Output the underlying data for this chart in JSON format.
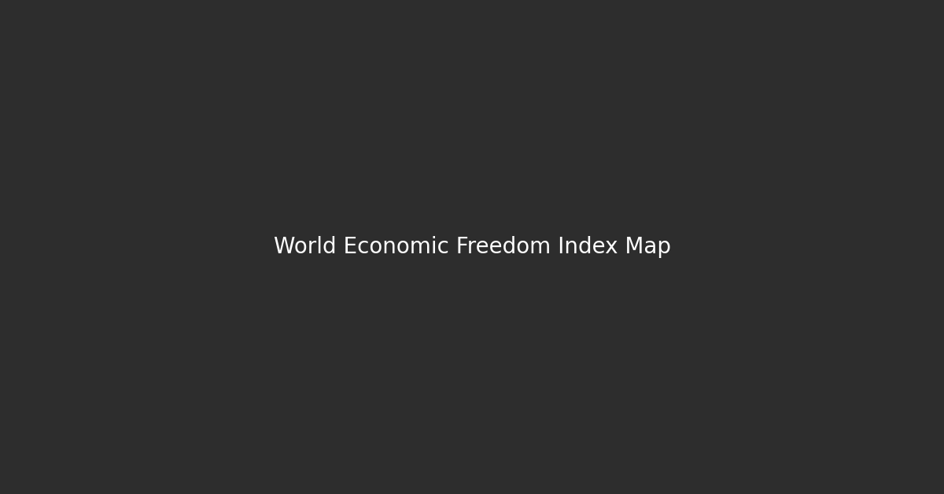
{
  "background_color": "#2d2d2d",
  "ocean_color": "#2d2d2d",
  "border_color": "#ffffff",
  "border_linewidth": 0.3,
  "colors": {
    "green": "#2ecc40",
    "yellow": "#f1c40f",
    "orange": "#e67e22",
    "red": "#e74c3c",
    "gray": "#808080",
    "dark": "#2d2d2d"
  },
  "country_colors": {
    "Australia": "green",
    "New Zealand": "green",
    "Canada": "green",
    "United States of America": "green",
    "Ireland": "green",
    "Switzerland": "green",
    "United Kingdom": "green",
    "Denmark": "green",
    "Finland": "green",
    "Sweden": "green",
    "Norway": "green",
    "Estonia": "green",
    "Netherlands": "green",
    "Luxembourg": "green",
    "Iceland": "green",
    "Taiwan": "gray",
    "Singapore": "green",
    "Hong Kong": "green",
    "Japan": "yellow",
    "South Korea": "green",
    "Chile": "green",
    "Georgia": "green",
    "Lithuania": "green",
    "Latvia": "green",
    "Czechia": "yellow",
    "Slovakia": "yellow",
    "Poland": "yellow",
    "Hungary": "yellow",
    "Romania": "yellow",
    "Bulgaria": "yellow",
    "Croatia": "yellow",
    "Slovenia": "yellow",
    "Austria": "yellow",
    "Germany": "yellow",
    "Belgium": "yellow",
    "Portugal": "yellow",
    "Spain": "yellow",
    "France": "yellow",
    "Italy": "yellow",
    "Greece": "yellow",
    "Cyprus": "yellow",
    "Malta": "yellow",
    "Israel": "yellow",
    "Uruguay": "yellow",
    "Peru": "yellow",
    "Colombia": "yellow",
    "Mexico": "yellow",
    "Kazakhstan": "yellow",
    "Mongolia": "yellow",
    "Botswana": "yellow",
    "Rwanda": "yellow",
    "Uganda": "yellow",
    "Ghana": "yellow",
    "Senegal": "yellow",
    "Morocco": "yellow",
    "Tunisia": "yellow",
    "South Africa": "yellow",
    "Mozambique": "yellow",
    "Tanzania": "yellow",
    "Philippines": "yellow",
    "Indonesia": "yellow",
    "Thailand": "yellow",
    "Malaysia": "yellow",
    "Vietnam": "yellow",
    "Armenia": "yellow",
    "North Macedonia": "yellow",
    "Albania": "yellow",
    "Serbia": "yellow",
    "Kosovo": "gray",
    "Moldova": "yellow",
    "Ukraine": "yellow",
    "Jordan": "yellow",
    "Russia": "orange",
    "China": "orange",
    "India": "orange",
    "Brazil": "orange",
    "Argentina": "orange",
    "Ecuador": "orange",
    "Bolivia": "orange",
    "Paraguay": "orange",
    "Guyana": "orange",
    "Suriname": "orange",
    "Honduras": "orange",
    "Guatemala": "orange",
    "El Salvador": "orange",
    "Nicaragua": "orange",
    "Panama": "orange",
    "Costa Rica": "orange",
    "Dominican Republic": "orange",
    "Jamaica": "orange",
    "Haiti": "orange",
    "Trinidad and Tobago": "orange",
    "Belize": "orange",
    "Namibia": "orange",
    "Zambia": "orange",
    "Zimbabwe": "red",
    "Malawi": "orange",
    "Lesotho": "orange",
    "Eswatini": "orange",
    "Madagascar": "orange",
    "Comoros": "orange",
    "Mauritius": "orange",
    "Djibouti": "orange",
    "Ethiopia": "orange",
    "Kenya": "orange",
    "Nigeria": "orange",
    "Cameroon": "orange",
    "Gabon": "orange",
    "Togo": "orange",
    "Benin": "orange",
    "Ivory Coast": "orange",
    "Burkina Faso": "orange",
    "Mali": "orange",
    "Mauritania": "orange",
    "Gambia": "orange",
    "Guinea-Bissau": "orange",
    "Sierra Leone": "orange",
    "Liberia": "orange",
    "Niger": "orange",
    "Chad": "orange",
    "Sao Tome and Principe": "orange",
    "Equatorial Guinea": "orange",
    "Algeria": "orange",
    "Egypt": "orange",
    "Pakistan": "orange",
    "Bangladesh": "orange",
    "Sri Lanka": "orange",
    "Nepal": "orange",
    "Bhutan": "orange",
    "Myanmar": "orange",
    "Cambodia": "orange",
    "Laos": "orange",
    "Tajikistan": "orange",
    "Kyrgyzstan": "orange",
    "Uzbekistan": "orange",
    "Turkmenistan": "orange",
    "Azerbaijan": "orange",
    "Belarus": "orange",
    "Bosnia and Herzegovina": "orange",
    "Montenegro": "orange",
    "Turkey": "orange",
    "Lebanon": "orange",
    "Iraq": "orange",
    "Iran": "red",
    "Syria": "red",
    "Yemen": "red",
    "Venezuela": "red",
    "Cuba": "red",
    "North Korea": "red",
    "Sudan": "red",
    "South Sudan": "red",
    "Somalia": "red",
    "Central African Republic": "red",
    "Democratic Republic of the Congo": "red",
    "Congo": "red",
    "Angola": "red",
    "Guinea": "red",
    "Eritrea": "red",
    "Libya": "red",
    "Afghanistan": "red",
    "Greenland": "gray",
    "Western Sahara": "gray",
    "Somaliland": "gray",
    "Puerto Rico": "gray",
    "Palestine": "gray",
    "Falkland Islands": "gray"
  },
  "figsize": [
    12.0,
    6.28
  ],
  "dpi": 100
}
